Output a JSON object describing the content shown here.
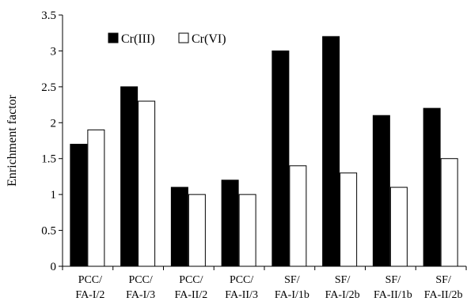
{
  "chart_data": {
    "type": "bar",
    "title": "",
    "xlabel": "",
    "ylabel": "Enrichment factor",
    "ylim": [
      0,
      3.5
    ],
    "y_ticks": [
      "0",
      "0.5",
      "1",
      "1.5",
      "2",
      "2.5",
      "3",
      "3.5"
    ],
    "grid": false,
    "legend_position": "top-left",
    "categories": [
      [
        "PCC/",
        "FA-I/2"
      ],
      [
        "PCC/",
        "FA-I/3"
      ],
      [
        "PCC/",
        "FA-II/2"
      ],
      [
        "PCC/",
        "FA-II/3"
      ],
      [
        "SF/",
        "FA-I/1b"
      ],
      [
        "SF/",
        "FA-I/2b"
      ],
      [
        "SF/",
        "FA-II/1b"
      ],
      [
        "SF/",
        "FA-II/2b"
      ]
    ],
    "series": [
      {
        "name": "Cr(III)",
        "color": "#000000",
        "values": [
          1.7,
          2.5,
          1.1,
          1.2,
          3.0,
          3.2,
          2.1,
          2.2
        ]
      },
      {
        "name": "Cr(VI)",
        "color": "#ffffff",
        "values": [
          1.9,
          2.3,
          1.0,
          1.0,
          1.4,
          1.3,
          1.1,
          1.5
        ]
      }
    ]
  }
}
